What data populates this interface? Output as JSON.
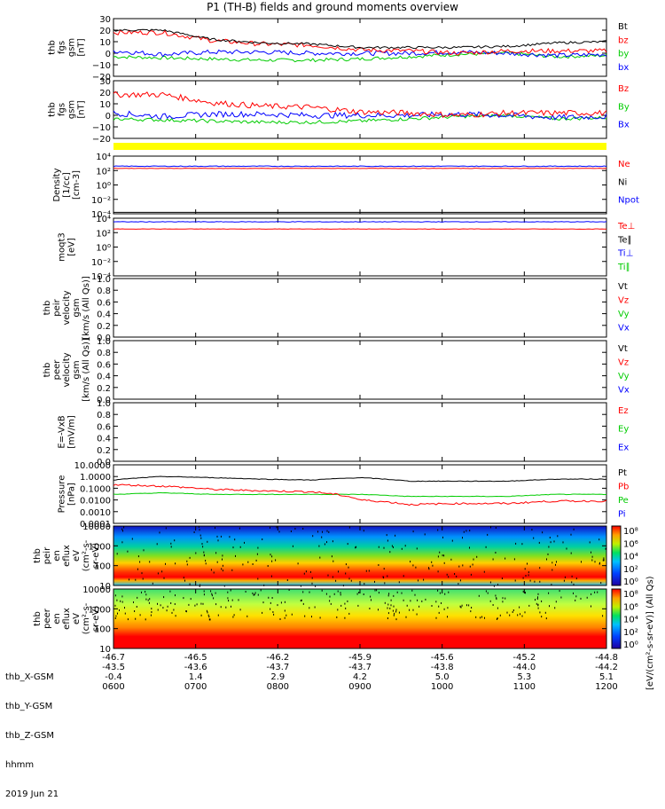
{
  "title": "P1 (TH-B) fields and ground moments overview",
  "chart_data": {
    "type": "line",
    "panels": [
      {
        "id": "fgs_gsm",
        "ylabel": [
          "thb",
          "fgs",
          "gsm",
          "[nT]"
        ],
        "yticks": [
          "30",
          "20",
          "10",
          "0",
          "−10",
          "−20"
        ],
        "ylim": [
          -20,
          30
        ],
        "legend": [
          {
            "name": "Bt",
            "color": "#000000"
          },
          {
            "name": "bz",
            "color": "#ff0000"
          },
          {
            "name": "by",
            "color": "#00cc00"
          },
          {
            "name": "bx",
            "color": "#0000ff"
          }
        ]
      },
      {
        "id": "fgs_gsm_dsl",
        "ylabel": [
          "thb",
          "fgs",
          "gsm",
          "[nT]"
        ],
        "yticks": [
          "30",
          "20",
          "10",
          "0",
          "−10",
          "−20"
        ],
        "ylim": [
          -20,
          30
        ],
        "legend": [
          {
            "name": "Bz",
            "color": "#ff0000"
          },
          {
            "name": "By",
            "color": "#00cc00"
          },
          {
            "name": "Bx",
            "color": "#0000ff"
          }
        ]
      },
      {
        "id": "density",
        "ylabel": [
          "Density",
          "[1/cc]",
          "[cm-3]"
        ],
        "yticks": [
          "10⁴",
          "10²",
          "10⁰",
          "10⁻²",
          "10⁻⁴"
        ],
        "log": true,
        "legend": [
          {
            "name": "Ne",
            "color": "#ff0000"
          },
          {
            "name": "Ni",
            "color": "#000000"
          },
          {
            "name": "Npot",
            "color": "#0000ff"
          }
        ]
      },
      {
        "id": "temperature",
        "ylabel": [
          "moqt3",
          "[eV]"
        ],
        "yticks": [
          "10⁴",
          "10²",
          "10⁰",
          "10⁻²",
          "10⁻⁴"
        ],
        "log": true,
        "legend": [
          {
            "name": "Te⊥",
            "color": "#ff0000"
          },
          {
            "name": "Te∥",
            "color": "#000000"
          },
          {
            "name": "Ti⊥",
            "color": "#0000ff"
          },
          {
            "name": "Ti∥",
            "color": "#00cc00"
          }
        ]
      },
      {
        "id": "peir_velocity",
        "ylabel": [
          "thb",
          "peir",
          "velocity",
          "gsm",
          "[km/s (All Qs)]"
        ],
        "yticks": [
          "1.0",
          "0.8",
          "0.6",
          "0.4",
          "0.2",
          "0.0"
        ],
        "ylim": [
          0,
          1
        ],
        "legend": [
          {
            "name": "Vt",
            "color": "#000000"
          },
          {
            "name": "Vz",
            "color": "#ff0000"
          },
          {
            "name": "Vy",
            "color": "#00cc00"
          },
          {
            "name": "Vx",
            "color": "#0000ff"
          }
        ]
      },
      {
        "id": "peer_velocity",
        "ylabel": [
          "thb",
          "peer",
          "velocity",
          "gsm",
          "[km/s (All Qs)]"
        ],
        "yticks": [
          "1.0",
          "0.8",
          "0.6",
          "0.4",
          "0.2",
          "0.0"
        ],
        "ylim": [
          0,
          1
        ],
        "legend": [
          {
            "name": "Vt",
            "color": "#000000"
          },
          {
            "name": "Vz",
            "color": "#ff0000"
          },
          {
            "name": "Vy",
            "color": "#00cc00"
          },
          {
            "name": "Vx",
            "color": "#0000ff"
          }
        ]
      },
      {
        "id": "efield",
        "ylabel": [
          "E=-VxB",
          "[mV/m]"
        ],
        "yticks": [
          "1.0",
          "0.8",
          "0.6",
          "0.4",
          "0.2",
          "0.0"
        ],
        "ylim": [
          0,
          1
        ],
        "legend": [
          {
            "name": "Ez",
            "color": "#ff0000"
          },
          {
            "name": "Ey",
            "color": "#00cc00"
          },
          {
            "name": "Ex",
            "color": "#0000ff"
          }
        ]
      },
      {
        "id": "pressure",
        "ylabel": [
          "Pressure",
          "[nPa]"
        ],
        "yticks": [
          "10.0000",
          "1.0000",
          "0.1000",
          "0.0100",
          "0.0010",
          "0.0001"
        ],
        "log": true,
        "legend": [
          {
            "name": "Pt",
            "color": "#000000"
          },
          {
            "name": "Pb",
            "color": "#ff0000"
          },
          {
            "name": "Pe",
            "color": "#00cc00"
          },
          {
            "name": "Pi",
            "color": "#0000ff"
          }
        ]
      },
      {
        "id": "peir_eflux",
        "ylabel": [
          "thb",
          "peir",
          "en",
          "eflux",
          "eV",
          "(cm²-s-",
          "sr-eV)"
        ],
        "yticks": [
          "10000",
          "1000",
          "100",
          "10"
        ],
        "log": true
      },
      {
        "id": "peer_eflux",
        "ylabel": [
          "thb",
          "peer",
          "en",
          "eflux",
          "eV",
          "(cm²-s-",
          "sr-eV)"
        ],
        "yticks": [
          "10000",
          "1000",
          "100",
          "10"
        ],
        "log": true
      }
    ],
    "series": [
      {
        "name": "Bt",
        "values": [
          20,
          20,
          12,
          9,
          8,
          5,
          5,
          5,
          6,
          9,
          10
        ]
      },
      {
        "name": "bz",
        "values": [
          18,
          18,
          11,
          8,
          7,
          3,
          2,
          0,
          2,
          2,
          2
        ]
      },
      {
        "name": "by",
        "values": [
          -3,
          -4,
          -5,
          -6,
          -6,
          -5,
          -3,
          -1,
          0,
          -3,
          -2
        ]
      },
      {
        "name": "bx",
        "values": [
          2,
          -1,
          1,
          1,
          0,
          0,
          0,
          1,
          0,
          -2,
          -1
        ]
      },
      {
        "name": "Pt",
        "values": [
          0.5,
          1.0,
          0.8,
          0.6,
          0.5,
          0.8,
          0.4,
          0.4,
          0.4,
          0.6,
          0.6
        ]
      },
      {
        "name": "Pb",
        "values": [
          0.2,
          0.15,
          0.08,
          0.06,
          0.05,
          0.01,
          0.004,
          0.005,
          0.005,
          0.008,
          0.008
        ]
      },
      {
        "name": "Pe",
        "values": [
          0.03,
          0.04,
          0.03,
          0.03,
          0.03,
          0.03,
          0.02,
          0.02,
          0.02,
          0.03,
          0.03
        ]
      }
    ],
    "x_ticks": [
      "0600",
      "0700",
      "0800",
      "0900",
      "1000",
      "1100",
      "1200"
    ],
    "colorbar": {
      "ticks": [
        "10⁸",
        "10⁶",
        "10⁴",
        "10²",
        "10⁰"
      ],
      "label": "[eV/(cm²-s-sr-eV)] (All Qs)"
    }
  },
  "footer": {
    "row_labels": [
      "thb_X-GSM",
      "thb_Y-GSM",
      "thb_Z-GSM",
      "hhmm",
      "2019 Jun 21"
    ],
    "columns": [
      [
        "-46.7",
        "-43.5",
        "-0.4",
        "0600"
      ],
      [
        "-46.5",
        "-43.6",
        "1.4",
        "0700"
      ],
      [
        "-46.2",
        "-43.7",
        "2.9",
        "0800"
      ],
      [
        "-45.9",
        "-43.7",
        "4.2",
        "0900"
      ],
      [
        "-45.6",
        "-43.8",
        "5.0",
        "1000"
      ],
      [
        "-45.2",
        "-44.0",
        "5.3",
        "1100"
      ],
      [
        "-44.8",
        "-44.2",
        "5.1",
        "1200"
      ]
    ]
  }
}
